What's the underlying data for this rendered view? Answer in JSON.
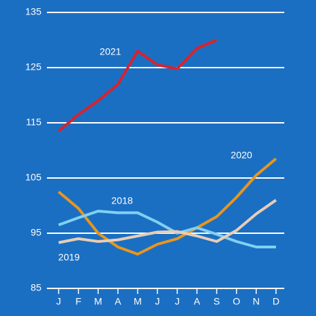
{
  "chart_data": {
    "type": "line",
    "categories": [
      "J",
      "F",
      "M",
      "A",
      "M",
      "J",
      "J",
      "A",
      "S",
      "O",
      "N",
      "D"
    ],
    "series": [
      {
        "name": "2021",
        "color": "#d8232c",
        "values": [
          113.5,
          116.5,
          119,
          122,
          128,
          125.5,
          124.8,
          128.5,
          130,
          null,
          null,
          null
        ]
      },
      {
        "name": "2020",
        "color": "#e8961e",
        "values": [
          102.5,
          99.5,
          95,
          92.5,
          91.2,
          93,
          94,
          96,
          98,
          101.5,
          105.5,
          108.5
        ]
      },
      {
        "name": "2018",
        "color": "#80d0f2",
        "values": [
          96.5,
          97.8,
          99,
          98.7,
          98.7,
          97,
          95,
          96,
          94.8,
          93.5,
          92.5,
          92.5
        ]
      },
      {
        "name": "2019",
        "color": "#e9cdb6",
        "values": [
          93.3,
          94,
          93.5,
          93.8,
          94.5,
          95.2,
          95.3,
          94.5,
          93.5,
          95.5,
          98.5,
          101
        ]
      }
    ],
    "ylim": [
      85,
      135
    ],
    "yticks": [
      85,
      95,
      105,
      115,
      125,
      135
    ],
    "grid": true
  }
}
